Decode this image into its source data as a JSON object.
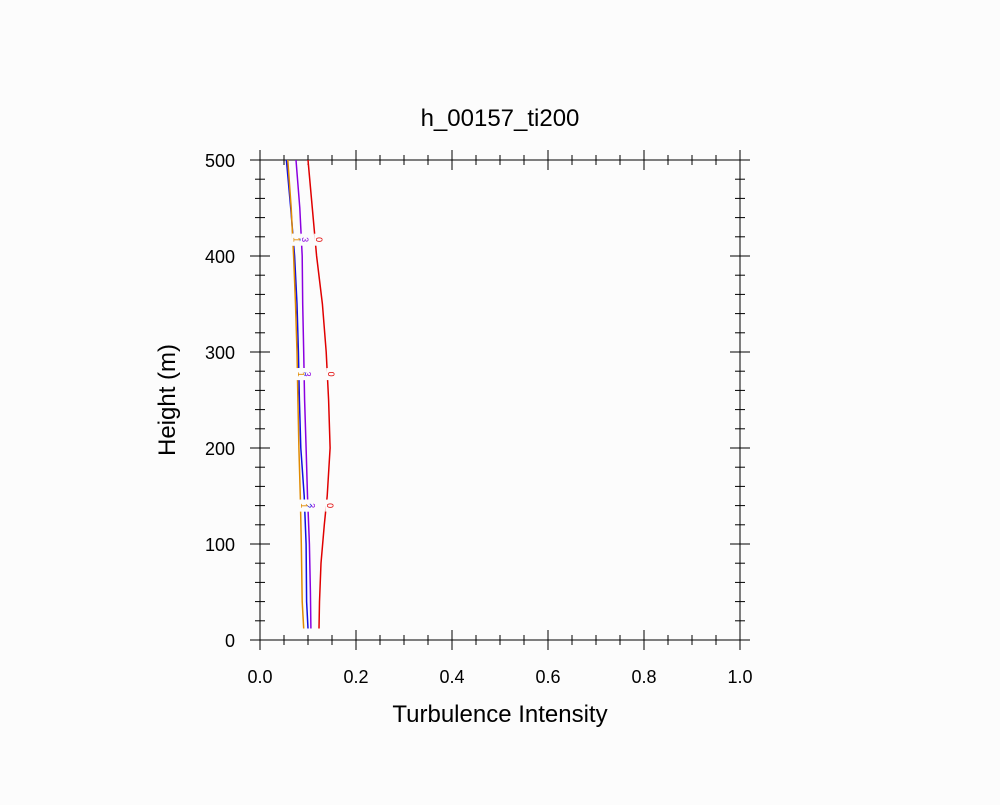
{
  "chart_data": {
    "type": "line",
    "title": "h_00157_ti200",
    "xlabel": "Turbulence Intensity",
    "ylabel": "Height (m)",
    "xlim": [
      0.0,
      1.0
    ],
    "ylim": [
      0,
      500
    ],
    "x_ticks": [
      0.0,
      0.2,
      0.4,
      0.6,
      0.8,
      1.0
    ],
    "x_tick_labels": [
      "0.0",
      "0.2",
      "0.4",
      "0.6",
      "0.8",
      "1.0"
    ],
    "y_ticks": [
      0,
      100,
      200,
      300,
      400,
      500
    ],
    "y_tick_labels": [
      "0",
      "100",
      "200",
      "300",
      "400",
      "500"
    ],
    "grid": false,
    "legend": "none",
    "series": [
      {
        "line_label": "0",
        "color": "#e00000",
        "points": [
          [
            0.123,
            12
          ],
          [
            0.124,
            40
          ],
          [
            0.127,
            80
          ],
          [
            0.134,
            120
          ],
          [
            0.14,
            150
          ],
          [
            0.146,
            200
          ],
          [
            0.143,
            250
          ],
          [
            0.138,
            300
          ],
          [
            0.13,
            350
          ],
          [
            0.118,
            400
          ],
          [
            0.109,
            450
          ],
          [
            0.1,
            500
          ]
        ]
      },
      {
        "line_label": "3",
        "color": "#8a00e0",
        "points": [
          [
            0.106,
            12
          ],
          [
            0.105,
            50
          ],
          [
            0.103,
            100
          ],
          [
            0.099,
            150
          ],
          [
            0.096,
            200
          ],
          [
            0.093,
            250
          ],
          [
            0.091,
            300
          ],
          [
            0.089,
            350
          ],
          [
            0.088,
            400
          ],
          [
            0.083,
            450
          ],
          [
            0.075,
            500
          ]
        ]
      },
      {
        "line_label": "2",
        "color": "#1010e0",
        "points": [
          [
            0.1,
            12
          ],
          [
            0.097,
            40
          ],
          [
            0.096,
            100
          ],
          [
            0.092,
            150
          ],
          [
            0.085,
            200
          ],
          [
            0.082,
            250
          ],
          [
            0.08,
            300
          ],
          [
            0.077,
            350
          ],
          [
            0.072,
            400
          ],
          [
            0.064,
            450
          ],
          [
            0.055,
            500
          ]
        ]
      },
      {
        "line_label": "1",
        "color": "#e08a00",
        "points": [
          [
            0.091,
            12
          ],
          [
            0.088,
            40
          ],
          [
            0.086,
            100
          ],
          [
            0.084,
            150
          ],
          [
            0.081,
            200
          ],
          [
            0.079,
            250
          ],
          [
            0.077,
            300
          ],
          [
            0.074,
            350
          ],
          [
            0.07,
            400
          ],
          [
            0.065,
            450
          ],
          [
            0.058,
            500
          ]
        ]
      }
    ],
    "line_label_heights": [
      140,
      277,
      417
    ]
  }
}
